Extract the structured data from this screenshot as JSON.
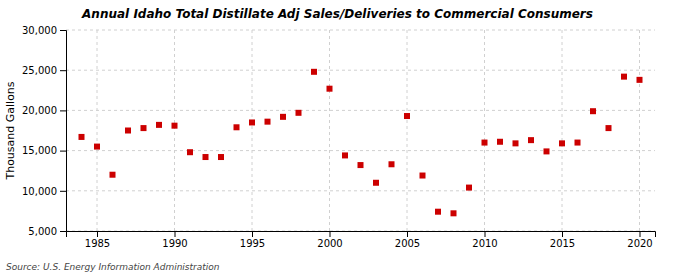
{
  "chart_data": {
    "type": "scatter",
    "title": "Annual Idaho Total Distillate Adj Sales/Deliveries to Commercial Consumers",
    "ylabel": "Thousand Gallons",
    "annotation": "Source: U.S. Energy Information Administration",
    "color": "#cc0000",
    "marker": "square",
    "grid": true,
    "xlim": [
      1983,
      2021
    ],
    "ylim": [
      5000,
      30000
    ],
    "xticks": [
      1985,
      1990,
      1995,
      2000,
      2005,
      2010,
      2015,
      2020
    ],
    "yticks": [
      {
        "value": 5000,
        "label": "5,000"
      },
      {
        "value": 10000,
        "label": "10,000"
      },
      {
        "value": 15000,
        "label": "15,000"
      },
      {
        "value": 20000,
        "label": "20,000"
      },
      {
        "value": 25000,
        "label": "25,000"
      },
      {
        "value": 30000,
        "label": "30,000"
      }
    ],
    "x": [
      1984,
      1985,
      1986,
      1987,
      1988,
      1989,
      1990,
      1991,
      1992,
      1993,
      1994,
      1995,
      1996,
      1997,
      1998,
      1999,
      2000,
      2001,
      2002,
      2003,
      2004,
      2005,
      2006,
      2007,
      2008,
      2009,
      2010,
      2011,
      2012,
      2013,
      2014,
      2015,
      2016,
      2017,
      2018,
      2019,
      2020
    ],
    "values": [
      16700,
      15500,
      12000,
      17500,
      17800,
      18200,
      18100,
      14800,
      14200,
      14200,
      17900,
      18500,
      18600,
      19200,
      19700,
      24800,
      22700,
      14400,
      13200,
      11000,
      13300,
      19300,
      11900,
      7400,
      7200,
      10400,
      16000,
      16100,
      15900,
      16300,
      14900,
      15900,
      16000,
      19900,
      17800,
      24200,
      23800
    ]
  }
}
